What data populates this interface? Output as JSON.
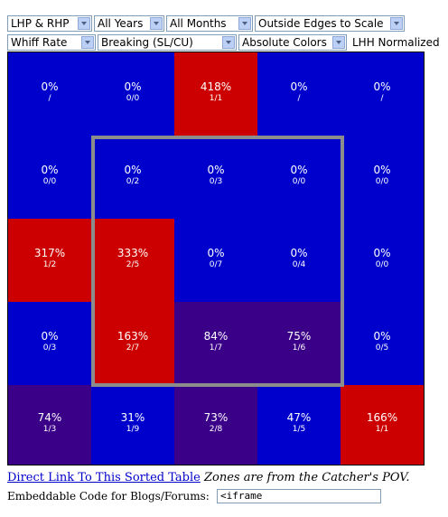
{
  "controls": {
    "row1": [
      "LHP & RHP",
      "All Years",
      "All Months",
      "Outside Edges to Scale"
    ],
    "row2": [
      "Whiff Rate",
      "Breaking (SL/CU)",
      "Absolute Colors"
    ],
    "normalized_label": "LHH Normalized"
  },
  "colors": {
    "blue": "#0000cc",
    "red": "#cc0000",
    "purple": "#3a0088",
    "strike_border": "#8c8c8c"
  },
  "grid": {
    "rows": [
      [
        {
          "pct": "0%",
          "count": "/",
          "color": "blue"
        },
        {
          "pct": "0%",
          "count": "0/0",
          "color": "blue"
        },
        {
          "pct": "418%",
          "count": "1/1",
          "color": "red"
        },
        {
          "pct": "0%",
          "count": "/",
          "color": "blue"
        },
        {
          "pct": "0%",
          "count": "/",
          "color": "blue"
        }
      ],
      [
        {
          "pct": "0%",
          "count": "0/0",
          "color": "blue"
        },
        {
          "pct": "0%",
          "count": "0/2",
          "color": "blue"
        },
        {
          "pct": "0%",
          "count": "0/3",
          "color": "blue"
        },
        {
          "pct": "0%",
          "count": "0/0",
          "color": "blue"
        },
        {
          "pct": "0%",
          "count": "0/0",
          "color": "blue"
        }
      ],
      [
        {
          "pct": "317%",
          "count": "1/2",
          "color": "red"
        },
        {
          "pct": "333%",
          "count": "2/5",
          "color": "red"
        },
        {
          "pct": "0%",
          "count": "0/7",
          "color": "blue"
        },
        {
          "pct": "0%",
          "count": "0/4",
          "color": "blue"
        },
        {
          "pct": "0%",
          "count": "0/0",
          "color": "blue"
        }
      ],
      [
        {
          "pct": "0%",
          "count": "0/3",
          "color": "blue"
        },
        {
          "pct": "163%",
          "count": "2/7",
          "color": "red"
        },
        {
          "pct": "84%",
          "count": "1/7",
          "color": "purple"
        },
        {
          "pct": "75%",
          "count": "1/6",
          "color": "purple"
        },
        {
          "pct": "0%",
          "count": "0/5",
          "color": "blue"
        }
      ],
      [
        {
          "pct": "74%",
          "count": "1/3",
          "color": "purple"
        },
        {
          "pct": "31%",
          "count": "1/9",
          "color": "blue"
        },
        {
          "pct": "73%",
          "count": "2/8",
          "color": "purple"
        },
        {
          "pct": "47%",
          "count": "1/5",
          "color": "blue"
        },
        {
          "pct": "166%",
          "count": "1/1",
          "color": "red"
        }
      ]
    ]
  },
  "footer": {
    "link_text": "Direct Link To This Sorted Table",
    "pov_note": "Zones are from the Catcher's POV.",
    "embed_label": "Embeddable Code for Blogs/Forums:",
    "embed_value": "<iframe"
  }
}
